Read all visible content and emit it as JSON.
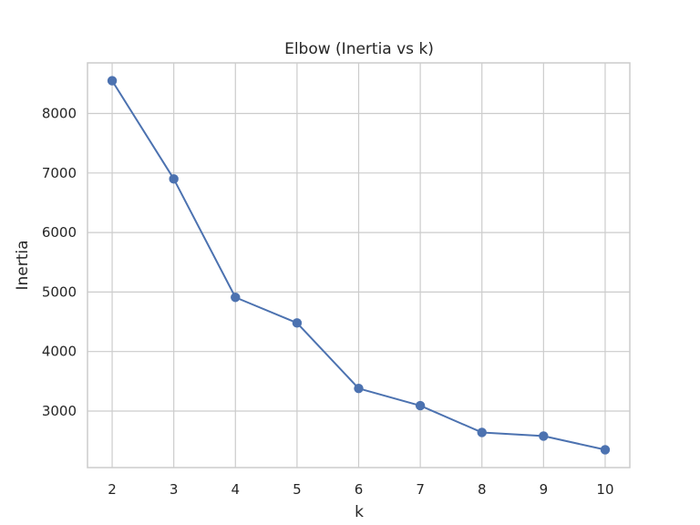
{
  "chart_data": {
    "type": "line",
    "title": "Elbow (Inertia vs k)",
    "xlabel": "k",
    "ylabel": "Inertia",
    "x": [
      2,
      3,
      4,
      5,
      6,
      7,
      8,
      9,
      10
    ],
    "series": [
      {
        "values": [
          8550,
          6900,
          4910,
          4480,
          3380,
          3090,
          2640,
          2580,
          2350
        ],
        "color": "#4c72b0",
        "marker": "circle"
      }
    ],
    "xlim": [
      1.6,
      10.4
    ],
    "ylim": [
      2050,
      8850
    ],
    "xticks": [
      2,
      3,
      4,
      5,
      6,
      7,
      8,
      9,
      10
    ],
    "yticks": [
      3000,
      4000,
      5000,
      6000,
      7000,
      8000
    ],
    "grid": true,
    "legend": "none"
  }
}
